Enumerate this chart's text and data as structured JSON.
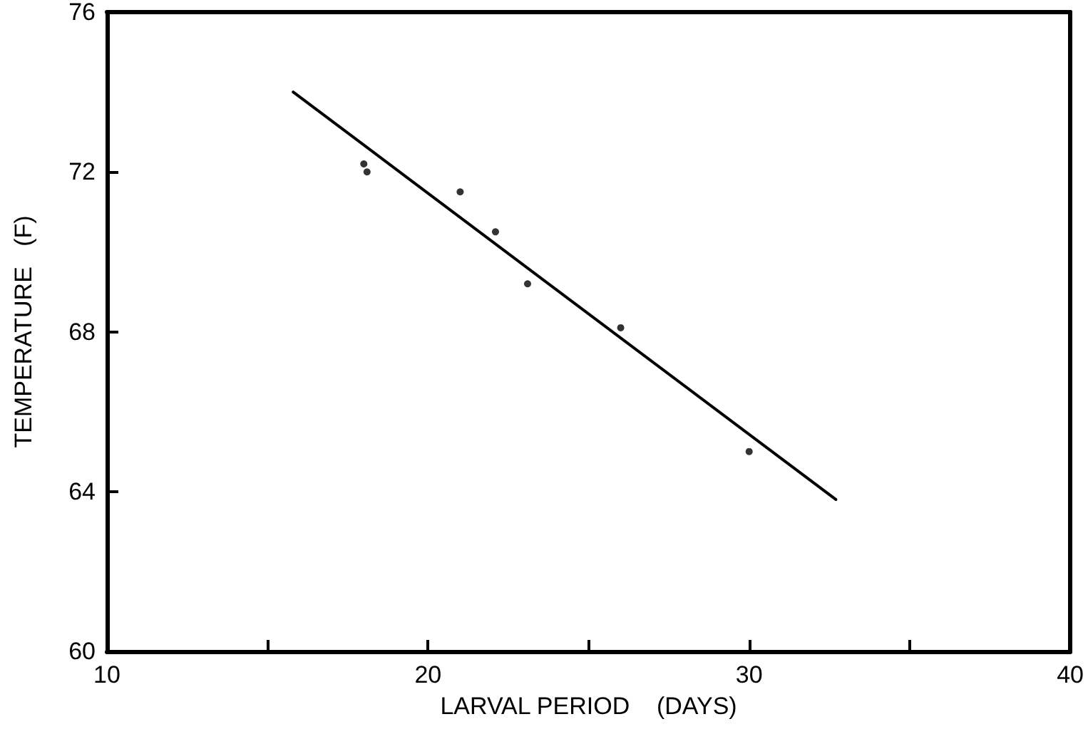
{
  "chart_data": {
    "type": "scatter",
    "xlabel": "LARVAL PERIOD    (DAYS)",
    "ylabel": "TEMPERATURE   (F)",
    "xlim": [
      10,
      40
    ],
    "xticks": [
      10,
      {
        "value": 15,
        "label": null
      },
      20,
      {
        "value": 25,
        "label": null
      },
      30,
      {
        "value": 35,
        "label": null
      },
      40
    ],
    "ylim": [
      60,
      76
    ],
    "yticks": [
      60,
      64,
      68,
      72,
      76
    ],
    "grid": false,
    "marker": "circle",
    "series": [
      {
        "color": "#000000",
        "x": [
          18.0,
          18.1,
          21.0,
          22.1,
          23.1,
          26.0,
          30.0
        ],
        "values": [
          72.2,
          72.0,
          71.5,
          70.5,
          69.2,
          68.1,
          65.0
        ]
      },
      {
        "type": "line",
        "color": "#000000",
        "marker": "none",
        "line_style": "solid",
        "x": [
          15.8,
          32.7
        ],
        "values": [
          74.0,
          63.8
        ]
      }
    ]
  }
}
